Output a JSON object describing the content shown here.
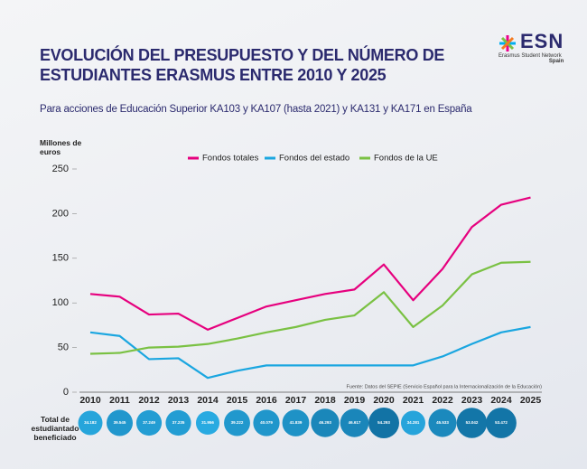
{
  "logo": {
    "name": "ESN",
    "subtitle": "Erasmus Student Network",
    "country": "Spain"
  },
  "chart_data": {
    "type": "line",
    "title": "EVOLUCIÓN DEL PRESUPUESTO Y DEL NÚMERO DE ESTUDIANTES ERASMUS ENTRE 2010 Y 2025",
    "subtitle": "Para acciones de Educación Superior KA103 y KA107 (hasta 2021) y KA131 y KA171 en España",
    "y_label": "Millones de euros",
    "source": "Fuente: Datos del SEPIE (Servicio Español para la Internacionalización de la Educación)",
    "categories": [
      "2010",
      "2011",
      "2012",
      "2013",
      "2014",
      "2015",
      "2016",
      "2017",
      "2018",
      "2019",
      "2020",
      "2021",
      "2022",
      "2023",
      "2024",
      "2025"
    ],
    "series": [
      {
        "name": "Fondos totales",
        "color": "#e6007e",
        "values": [
          110,
          107,
          87,
          88,
          70,
          83,
          96,
          103,
          110,
          115,
          143,
          103,
          138,
          185,
          210,
          218
        ]
      },
      {
        "name": "Fondos del estado",
        "color": "#1aa6e0",
        "values": [
          67,
          63,
          37,
          38,
          16,
          24,
          30,
          30,
          30,
          30,
          30,
          30,
          40,
          54,
          67,
          73
        ]
      },
      {
        "name": "Fondos de la UE",
        "color": "#7ac143",
        "values": [
          43,
          44,
          50,
          51,
          54,
          60,
          67,
          73,
          81,
          86,
          112,
          73,
          97,
          132,
          145,
          146
        ]
      }
    ],
    "ylim": [
      0,
      250
    ],
    "yticks": [
      0,
      50,
      100,
      150,
      200,
      250
    ],
    "grid": false,
    "legend": "top",
    "students": {
      "label": "Total de estudiantado beneficiado",
      "values": [
        34182,
        39545,
        37249,
        37235,
        31956,
        39222,
        40079,
        41839,
        46293,
        46617,
        54293,
        34281,
        45533,
        53042,
        53472,
        null
      ],
      "value_labels": [
        "34.182",
        "39.545",
        "37.249",
        "37.235",
        "31.956",
        "39.222",
        "40.079",
        "41.839",
        "46.293",
        "46.617",
        "54.293",
        "34.281",
        "45.533",
        "53.042",
        "53.472",
        null
      ]
    }
  }
}
